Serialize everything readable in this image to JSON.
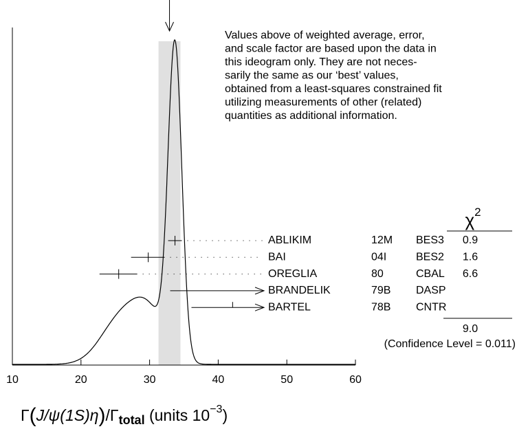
{
  "chart_data": {
    "type": "ideogram",
    "xlim": [
      10,
      60
    ],
    "xticks": [
      10,
      20,
      30,
      40,
      50,
      60
    ],
    "x_label": [
      "Γ",
      "(",
      "J/ψ(1S)η",
      ")",
      "/Γ",
      "total",
      " (units 10",
      "−3",
      ")"
    ],
    "weighted_average": 32.9,
    "band": [
      31.3,
      34.5
    ],
    "note": [
      "Values above of weighted average, error,",
      "and scale factor are based upon the data in",
      "this ideogram only.  They are not neces-",
      "sarily the same as our ‘best’ values,",
      "obtained from a least-squares constrained fit",
      "utilizing measurements of other (related)",
      "quantities as additional information."
    ],
    "chi2_header": [
      "χ",
      "2"
    ],
    "measurements": [
      {
        "name": "ABLIKIM",
        "year": "12M",
        "experiment": "BES3",
        "chi2": 0.9,
        "value": 33.7,
        "err_low": 1.0,
        "err_high": 1.0
      },
      {
        "name": "BAI",
        "year": "04I",
        "experiment": "BES2",
        "chi2": 1.6,
        "value": 29.8,
        "err_low": 2.5,
        "err_high": 2.4
      },
      {
        "name": "OREGLIA",
        "year": "80",
        "experiment": "CBAL",
        "chi2": 6.6,
        "value": 25.5,
        "err_low": 2.8,
        "err_high": 2.7
      },
      {
        "name": "BRANDELIK",
        "year": "79B",
        "experiment": "DASP",
        "limit": 33.0
      },
      {
        "name": "BARTEL",
        "year": "78B",
        "experiment": "CNTR",
        "limit": 36.1,
        "tick": 42.1
      }
    ],
    "chi2_total": {
      "value": 9,
      "label": "9.0"
    },
    "confidence_level": "(Confidence Level = 0.011)"
  }
}
